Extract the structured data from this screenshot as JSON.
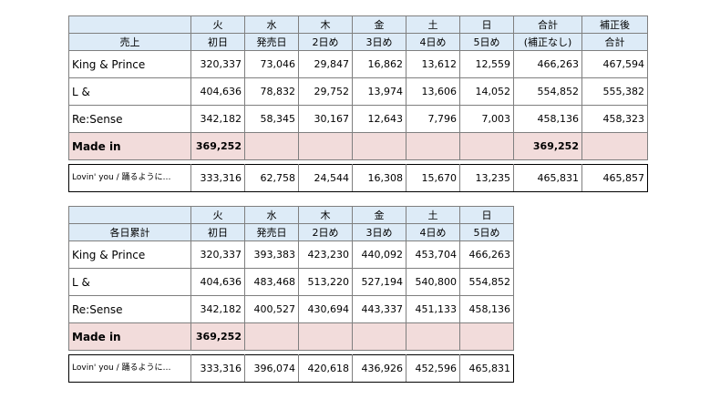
{
  "table1": {
    "title": "売上",
    "days": [
      "火",
      "水",
      "木",
      "金",
      "土",
      "日",
      "合計",
      "補正後"
    ],
    "subheads": [
      "初日",
      "発売日",
      "2日め",
      "3日め",
      "4日め",
      "5日め",
      "(補正なし)",
      "合計"
    ],
    "rows": [
      {
        "name": "King & Prince",
        "values": [
          "320,337",
          "73,046",
          "29,847",
          "16,862",
          "13,612",
          "12,559",
          "466,263",
          "467,594"
        ]
      },
      {
        "name": "L &",
        "values": [
          "404,636",
          "78,832",
          "29,752",
          "13,974",
          "13,606",
          "14,052",
          "554,852",
          "555,382"
        ]
      },
      {
        "name": "Re:Sense",
        "values": [
          "342,182",
          "58,345",
          "30,167",
          "12,643",
          "7,796",
          "7,003",
          "458,136",
          "458,323"
        ]
      }
    ],
    "madein": {
      "name": "Made in",
      "first": "369,252",
      "total": "369,252"
    },
    "lovin": {
      "name": "Lovin' you / 踊るように…",
      "values": [
        "333,316",
        "62,758",
        "24,544",
        "16,308",
        "15,670",
        "13,235",
        "465,831",
        "465,857"
      ]
    }
  },
  "table2": {
    "title": "各日累計",
    "days": [
      "火",
      "水",
      "木",
      "金",
      "土",
      "日"
    ],
    "subheads": [
      "初日",
      "発売日",
      "2日め",
      "3日め",
      "4日め",
      "5日め"
    ],
    "rows": [
      {
        "name": "King & Prince",
        "values": [
          "320,337",
          "393,383",
          "423,230",
          "440,092",
          "453,704",
          "466,263"
        ]
      },
      {
        "name": "L &",
        "values": [
          "404,636",
          "483,468",
          "513,220",
          "527,194",
          "540,800",
          "554,852"
        ]
      },
      {
        "name": "Re:Sense",
        "values": [
          "342,182",
          "400,527",
          "430,694",
          "443,337",
          "451,133",
          "458,136"
        ]
      }
    ],
    "madein": {
      "name": "Made in",
      "first": "369,252"
    },
    "lovin": {
      "name": "Lovin' you / 踊るように…",
      "values": [
        "333,316",
        "396,074",
        "420,618",
        "436,926",
        "452,596",
        "465,831"
      ]
    }
  }
}
